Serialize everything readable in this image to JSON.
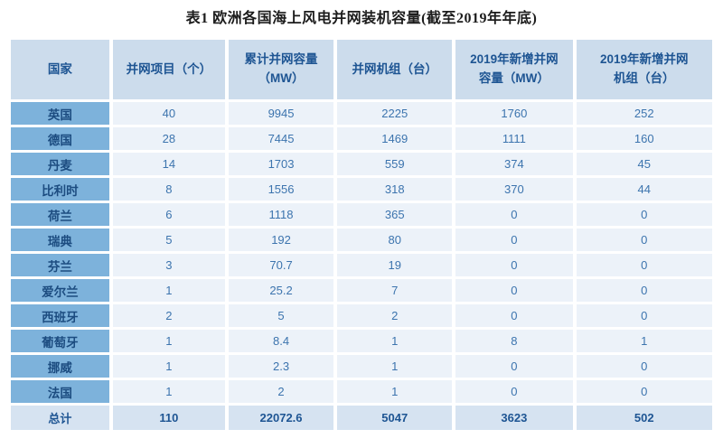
{
  "page": {
    "title": "表1 欧洲各国海上风电并网装机容量(截至2019年年底)"
  },
  "colors": {
    "header_bg": "#ccdcec",
    "country_cell_bg": "#7db2db",
    "value_cell_bg": "#ecf2f9",
    "total_row_bg": "#d6e3f1",
    "header_text": "#1e5593",
    "value_text": "#3c74ae",
    "title_text": "#1c1c1c"
  },
  "table": {
    "headers": [
      "国家",
      "并网项目（个）",
      "累计并网容量\n（MW）",
      "并网机组（台）",
      "2019年新增并网\n容量（MW）",
      "2019年新增并网\n机组（台）"
    ],
    "rows": [
      [
        "英国",
        "40",
        "9945",
        "2225",
        "1760",
        "252"
      ],
      [
        "德国",
        "28",
        "7445",
        "1469",
        "1111",
        "160"
      ],
      [
        "丹麦",
        "14",
        "1703",
        "559",
        "374",
        "45"
      ],
      [
        "比利时",
        "8",
        "1556",
        "318",
        "370",
        "44"
      ],
      [
        "荷兰",
        "6",
        "1118",
        "365",
        "0",
        "0"
      ],
      [
        "瑞典",
        "5",
        "192",
        "80",
        "0",
        "0"
      ],
      [
        "芬兰",
        "3",
        "70.7",
        "19",
        "0",
        "0"
      ],
      [
        "爱尔兰",
        "1",
        "25.2",
        "7",
        "0",
        "0"
      ],
      [
        "西班牙",
        "2",
        "5",
        "2",
        "0",
        "0"
      ],
      [
        "葡萄牙",
        "1",
        "8.4",
        "1",
        "8",
        "1"
      ],
      [
        "挪威",
        "1",
        "2.3",
        "1",
        "0",
        "0"
      ],
      [
        "法国",
        "1",
        "2",
        "1",
        "0",
        "0"
      ]
    ],
    "total_row": [
      "总计",
      "110",
      "22072.6",
      "5047",
      "3623",
      "502"
    ]
  }
}
